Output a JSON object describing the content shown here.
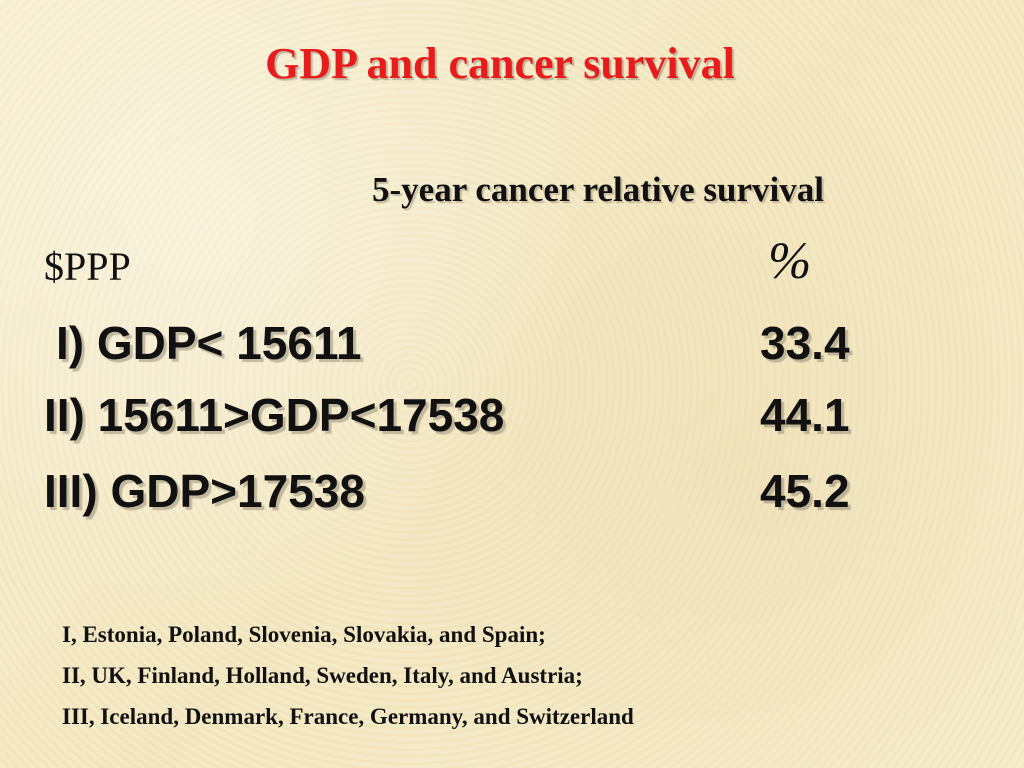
{
  "slide": {
    "title": "GDP and cancer survival",
    "column_header": "5-year cancer relative survival",
    "left_unit": "$PPP",
    "right_unit": "%",
    "rows": [
      {
        "label": "I) GDP< 15611",
        "value": "33.4"
      },
      {
        "label": "II) 15611>GDP<17538",
        "value": "44.1"
      },
      {
        "label": "III) GDP>17538",
        "value": "45.2"
      }
    ],
    "footnotes": [
      "I, Estonia, Poland, Slovenia, Slovakia, and Spain;",
      "II, UK, Finland, Holland, Sweden, Italy, and Austria;",
      "III, Iceland, Denmark, France, Germany, and Switzerland"
    ],
    "colors": {
      "title": "#e81c1c",
      "text": "#111111",
      "background": "#f6ecc9"
    }
  }
}
